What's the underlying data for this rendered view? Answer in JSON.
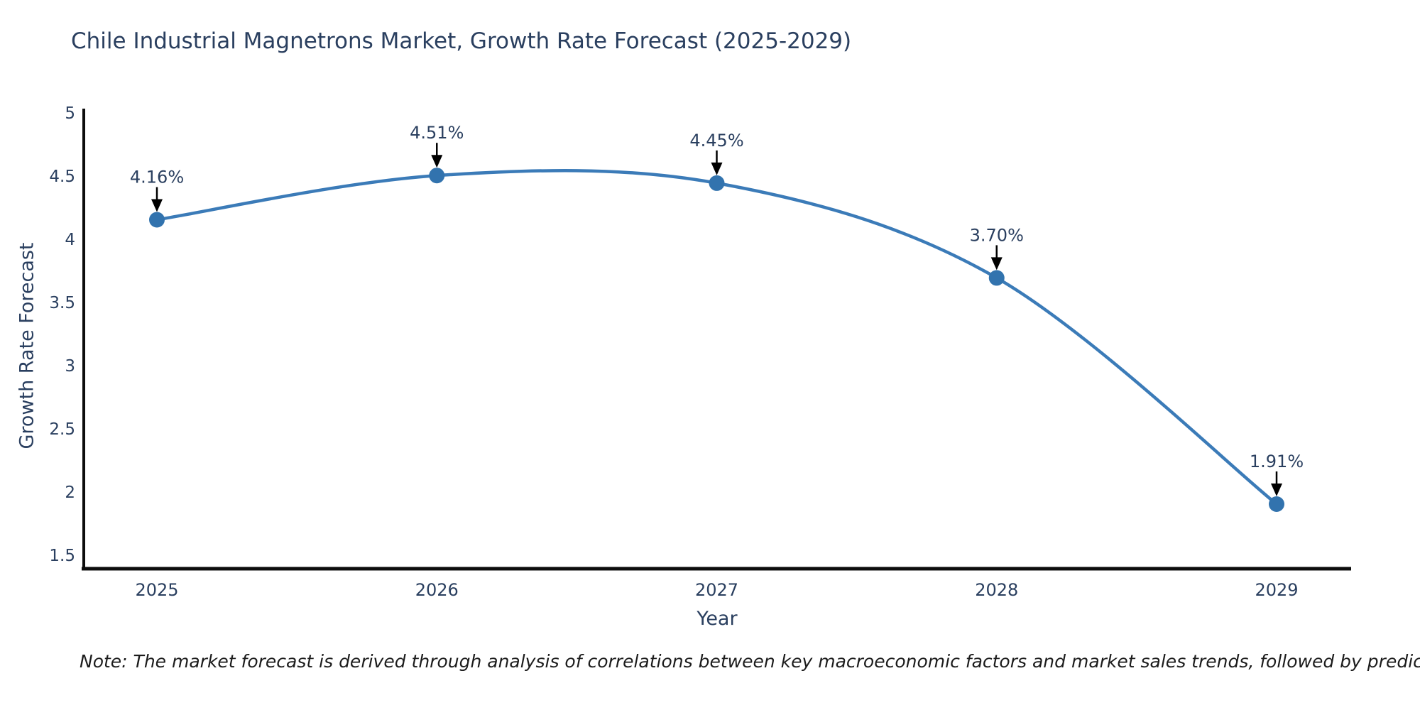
{
  "figure": {
    "title": "Chile Industrial Magnetrons Market, Growth Rate Forecast (2025-2029)",
    "note": "Note: The market forecast is derived through analysis of correlations between key macroeconomic factors and market sales trends, followed by predictive modeling to project future sales"
  },
  "chart_data": {
    "type": "line",
    "title": "Chile Industrial Magnetrons Market, Growth Rate Forecast (2025-2029)",
    "xlabel": "Year",
    "ylabel": "Growth Rate Forecast",
    "x": [
      2025,
      2026,
      2027,
      2028,
      2029
    ],
    "xticklabels": [
      "2025",
      "2026",
      "2027",
      "2028",
      "2029"
    ],
    "series": [
      {
        "name": "Growth Rate Forecast",
        "values": [
          4.16,
          4.51,
          4.45,
          3.7,
          1.91
        ]
      }
    ],
    "point_labels": [
      "4.16%",
      "4.51%",
      "4.45%",
      "3.70%",
      "1.91%"
    ],
    "yticks": [
      5,
      4.5,
      4,
      3.5,
      3,
      2.5,
      2,
      1.5
    ],
    "ytick_labels": [
      "5",
      "4.5",
      "4",
      "3.5",
      "3",
      "2.5",
      "2",
      "1.5"
    ],
    "ylim": [
      1.39,
      5.0
    ],
    "grid": false,
    "legend": "none",
    "line_shape": "spline",
    "markers": true,
    "annotation_style": "value labels with black down-arrows above each point",
    "colors": {
      "line": "#3b7bb8",
      "marker": "#3273ae",
      "axis": "#0d0d0d",
      "text": "#2a3f5f",
      "arrow": "#000000",
      "note_text": "#1c1c1c",
      "background": "#ffffff"
    }
  }
}
